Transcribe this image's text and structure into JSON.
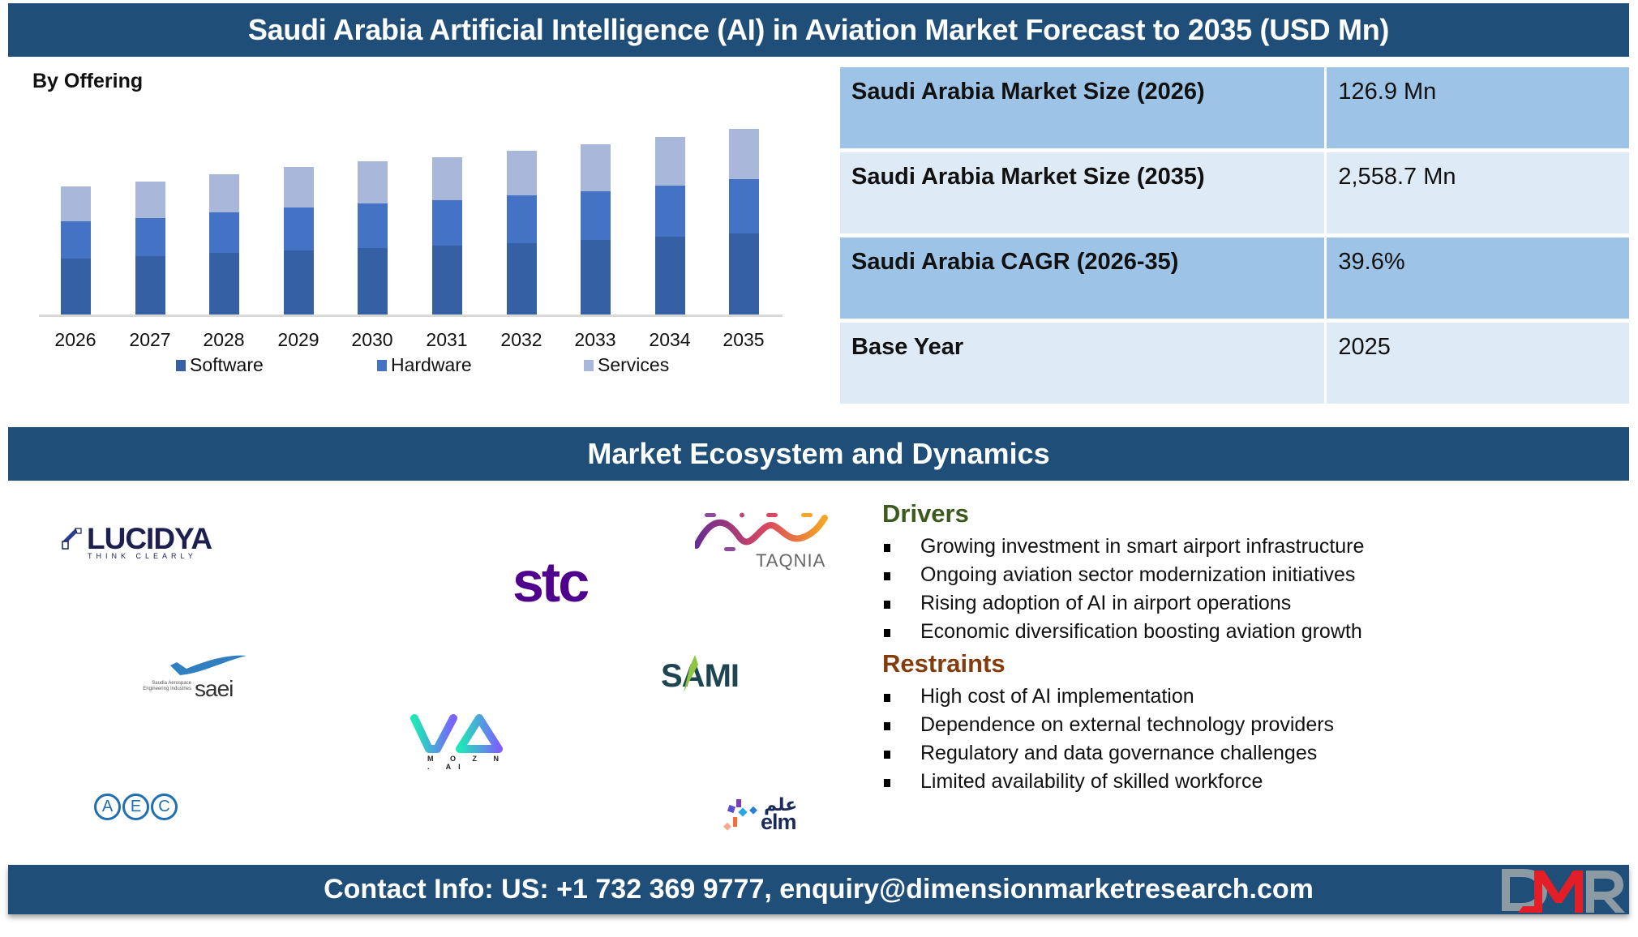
{
  "header": {
    "title": "Saudi Arabia Artificial Intelligence (AI) in Aviation Market Forecast to 2035 (USD Mn)"
  },
  "chart_section": {
    "label": "By Offering"
  },
  "chart_data": {
    "type": "bar",
    "stacked": true,
    "title": "By Offering",
    "xlabel": "",
    "ylabel": "",
    "grid": false,
    "legend_position": "bottom",
    "categories": [
      "2026",
      "2027",
      "2028",
      "2029",
      "2030",
      "2031",
      "2032",
      "2033",
      "2034",
      "2035"
    ],
    "series": [
      {
        "name": "Software",
        "color": "#3560a3",
        "values": [
          70,
          73,
          77,
          80,
          83,
          86,
          89,
          93,
          97,
          101
        ]
      },
      {
        "name": "Hardware",
        "color": "#4472c4",
        "values": [
          46,
          47,
          50,
          53,
          55,
          56,
          59,
          60,
          63,
          67
        ]
      },
      {
        "name": "Services",
        "color": "#a9b7da",
        "values": [
          43,
          45,
          47,
          50,
          52,
          53,
          55,
          58,
          60,
          62
        ]
      }
    ],
    "note": "No value axis shown; values are relative bar heights estimated from pixels"
  },
  "stats": [
    {
      "label": "Saudi Arabia Market Size (2026)",
      "value": "126.9 Mn"
    },
    {
      "label": "Saudi Arabia Market Size (2035)",
      "value": "2,558.7 Mn"
    },
    {
      "label": "Saudi Arabia CAGR (2026-35)",
      "value": "39.6%"
    },
    {
      "label": "Base Year",
      "value": "2025"
    }
  ],
  "ecosystem": {
    "title": "Market Ecosystem and Dynamics",
    "logos": {
      "lucidya": {
        "name": "LUCIDYA",
        "tagline": "THINK CLEARLY"
      },
      "stc": {
        "name": "stc"
      },
      "taqnia": {
        "name": "TAQNIA"
      },
      "saei": {
        "name": "saei",
        "subtitle_1": "Saudia Aerospace",
        "subtitle_2": "Engineering Industries"
      },
      "sami": {
        "name": "SAMI"
      },
      "mozn": {
        "name": "MOZN.AI",
        "tagline": "M O Z N . AI"
      },
      "aec": {
        "letters": [
          "A",
          "E",
          "C"
        ]
      },
      "elm": {
        "name": "elm",
        "arabic": "علم"
      }
    },
    "drivers": {
      "heading": "Drivers",
      "color": "#3d5a1e",
      "items": [
        "Growing investment in smart airport infrastructure",
        "Ongoing aviation sector modernization initiatives",
        "Rising adoption of AI in airport operations",
        "Economic diversification boosting aviation growth"
      ]
    },
    "restraints": {
      "heading": "Restraints",
      "color": "#843c0c",
      "items": [
        "High cost of AI implementation",
        "Dependence on external technology providers",
        "Regulatory and data governance challenges",
        "Limited availability of skilled workforce"
      ]
    }
  },
  "footer": {
    "contact": "Contact Info: US: +1 732 369 9777, enquiry@dimensionmarketresearch.com",
    "brand_logo": "DMR"
  },
  "colors": {
    "banner": "#1f4e79",
    "table_dark": "#9dc3e6",
    "table_light": "#deebf7"
  }
}
